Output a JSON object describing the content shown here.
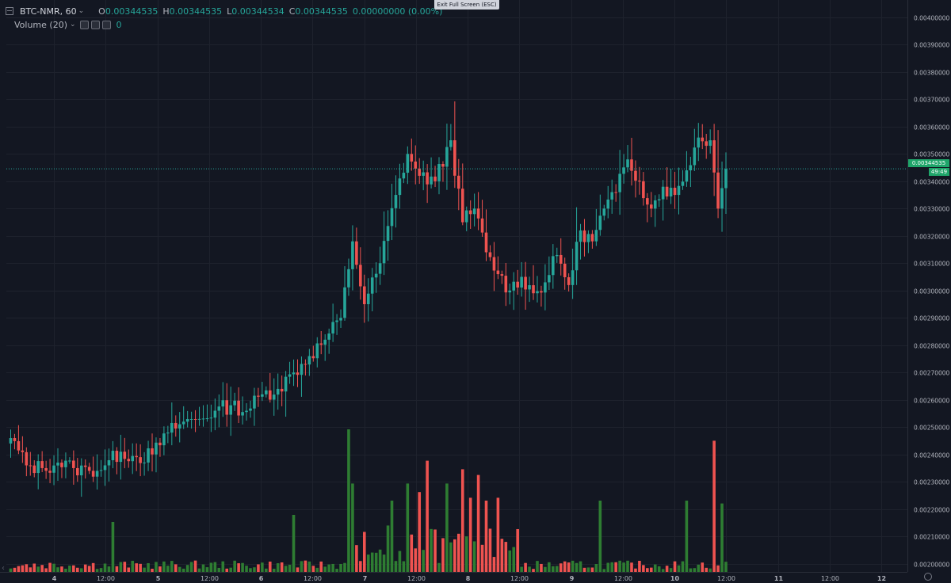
{
  "legend": {
    "symbol": "BTC-NMR, 60",
    "o_label": "O",
    "o_value": "0.00344535",
    "h_label": "H",
    "h_value": "0.00344535",
    "l_label": "L",
    "l_value": "0.00344534",
    "c_label": "C",
    "c_value": "0.00344535",
    "change": "0.00000000 (0.00%)",
    "volume_label": "Volume (20)",
    "volume_value": "0"
  },
  "exit_fullscreen_label": "Exit Full Screen (ESC)",
  "last_price_label": "0.00344535",
  "countdown_label": "49:49",
  "colors": {
    "background": "#131722",
    "grid": "#1e222d",
    "up": "#26a69a",
    "down": "#ef5350",
    "up_volume": "#2e7d32",
    "down_volume": "#ef5350",
    "text": "#b2b5be",
    "price_line": "#26a69a"
  },
  "chart_data": {
    "type": "candlestick",
    "symbol": "BTC-NMR",
    "interval": "60",
    "y_axis": {
      "min": 0.00197,
      "max": 0.00402,
      "ticks": [
        "0.00200000",
        "0.00210000",
        "0.00220000",
        "0.00230000",
        "0.00240000",
        "0.00250000",
        "0.00260000",
        "0.00270000",
        "0.00280000",
        "0.00290000",
        "0.00300000",
        "0.00310000",
        "0.00320000",
        "0.00330000",
        "0.00340000",
        "0.00350000",
        "0.00360000",
        "0.00370000",
        "0.00380000",
        "0.00390000",
        "0.00400000"
      ]
    },
    "x_axis": {
      "ticks": [
        "4",
        "12:00",
        "5",
        "12:00",
        "6",
        "12:00",
        "7",
        "12:00",
        "8",
        "12:00",
        "9",
        "12:00",
        "10",
        "12:00",
        "11",
        "12:00",
        "12"
      ]
    },
    "grid": true,
    "last_price": 0.00344535,
    "anchors": [
      {
        "i": 0,
        "c": 0.00246
      },
      {
        "i": 4,
        "c": 0.00236
      },
      {
        "i": 8,
        "c": 0.00235
      },
      {
        "i": 12,
        "c": 0.00237
      },
      {
        "i": 16,
        "c": 0.00235
      },
      {
        "i": 20,
        "c": 0.00234
      },
      {
        "i": 24,
        "c": 0.00236
      },
      {
        "i": 28,
        "c": 0.00241
      },
      {
        "i": 32,
        "c": 0.00239
      },
      {
        "i": 36,
        "c": 0.0024
      },
      {
        "i": 40,
        "c": 0.00248
      },
      {
        "i": 44,
        "c": 0.00252
      },
      {
        "i": 48,
        "c": 0.00253
      },
      {
        "i": 52,
        "c": 0.00256
      },
      {
        "i": 56,
        "c": 0.00258
      },
      {
        "i": 60,
        "c": 0.00256
      },
      {
        "i": 64,
        "c": 0.00262
      },
      {
        "i": 68,
        "c": 0.00264
      },
      {
        "i": 72,
        "c": 0.0027
      },
      {
        "i": 76,
        "c": 0.00276
      },
      {
        "i": 80,
        "c": 0.00282
      },
      {
        "i": 84,
        "c": 0.0029
      },
      {
        "i": 87,
        "c": 0.00318
      },
      {
        "i": 90,
        "c": 0.00295
      },
      {
        "i": 94,
        "c": 0.0031
      },
      {
        "i": 98,
        "c": 0.00335
      },
      {
        "i": 101,
        "c": 0.0035
      },
      {
        "i": 104,
        "c": 0.00342
      },
      {
        "i": 108,
        "c": 0.0034
      },
      {
        "i": 112,
        "c": 0.00355
      },
      {
        "i": 115,
        "c": 0.00325
      },
      {
        "i": 118,
        "c": 0.0033
      },
      {
        "i": 121,
        "c": 0.00314
      },
      {
        "i": 124,
        "c": 0.00306
      },
      {
        "i": 127,
        "c": 0.003
      },
      {
        "i": 130,
        "c": 0.00305
      },
      {
        "i": 133,
        "c": 0.00299
      },
      {
        "i": 136,
        "c": 0.00303
      },
      {
        "i": 139,
        "c": 0.00313
      },
      {
        "i": 142,
        "c": 0.00302
      },
      {
        "i": 145,
        "c": 0.00322
      },
      {
        "i": 148,
        "c": 0.00318
      },
      {
        "i": 151,
        "c": 0.0033
      },
      {
        "i": 154,
        "c": 0.00336
      },
      {
        "i": 157,
        "c": 0.00348
      },
      {
        "i": 160,
        "c": 0.0034
      },
      {
        "i": 163,
        "c": 0.0033
      },
      {
        "i": 166,
        "c": 0.00338
      },
      {
        "i": 169,
        "c": 0.00335
      },
      {
        "i": 172,
        "c": 0.00344
      },
      {
        "i": 175,
        "c": 0.00356
      },
      {
        "i": 178,
        "c": 0.00355
      },
      {
        "i": 180,
        "c": 0.0033
      },
      {
        "i": 182,
        "c": 0.00344535
      }
    ],
    "volume_spikes": [
      {
        "i": 26,
        "v": 0.35
      },
      {
        "i": 72,
        "v": 0.4
      },
      {
        "i": 86,
        "v": 1.0
      },
      {
        "i": 87,
        "v": 0.62
      },
      {
        "i": 97,
        "v": 0.5
      },
      {
        "i": 101,
        "v": 0.62
      },
      {
        "i": 104,
        "v": 0.56
      },
      {
        "i": 106,
        "v": 0.78
      },
      {
        "i": 111,
        "v": 0.62
      },
      {
        "i": 115,
        "v": 0.72
      },
      {
        "i": 117,
        "v": 0.52
      },
      {
        "i": 119,
        "v": 0.68
      },
      {
        "i": 121,
        "v": 0.5
      },
      {
        "i": 124,
        "v": 0.52
      },
      {
        "i": 150,
        "v": 0.5
      },
      {
        "i": 172,
        "v": 0.5
      },
      {
        "i": 179,
        "v": 0.92
      },
      {
        "i": 181,
        "v": 0.48
      }
    ]
  }
}
